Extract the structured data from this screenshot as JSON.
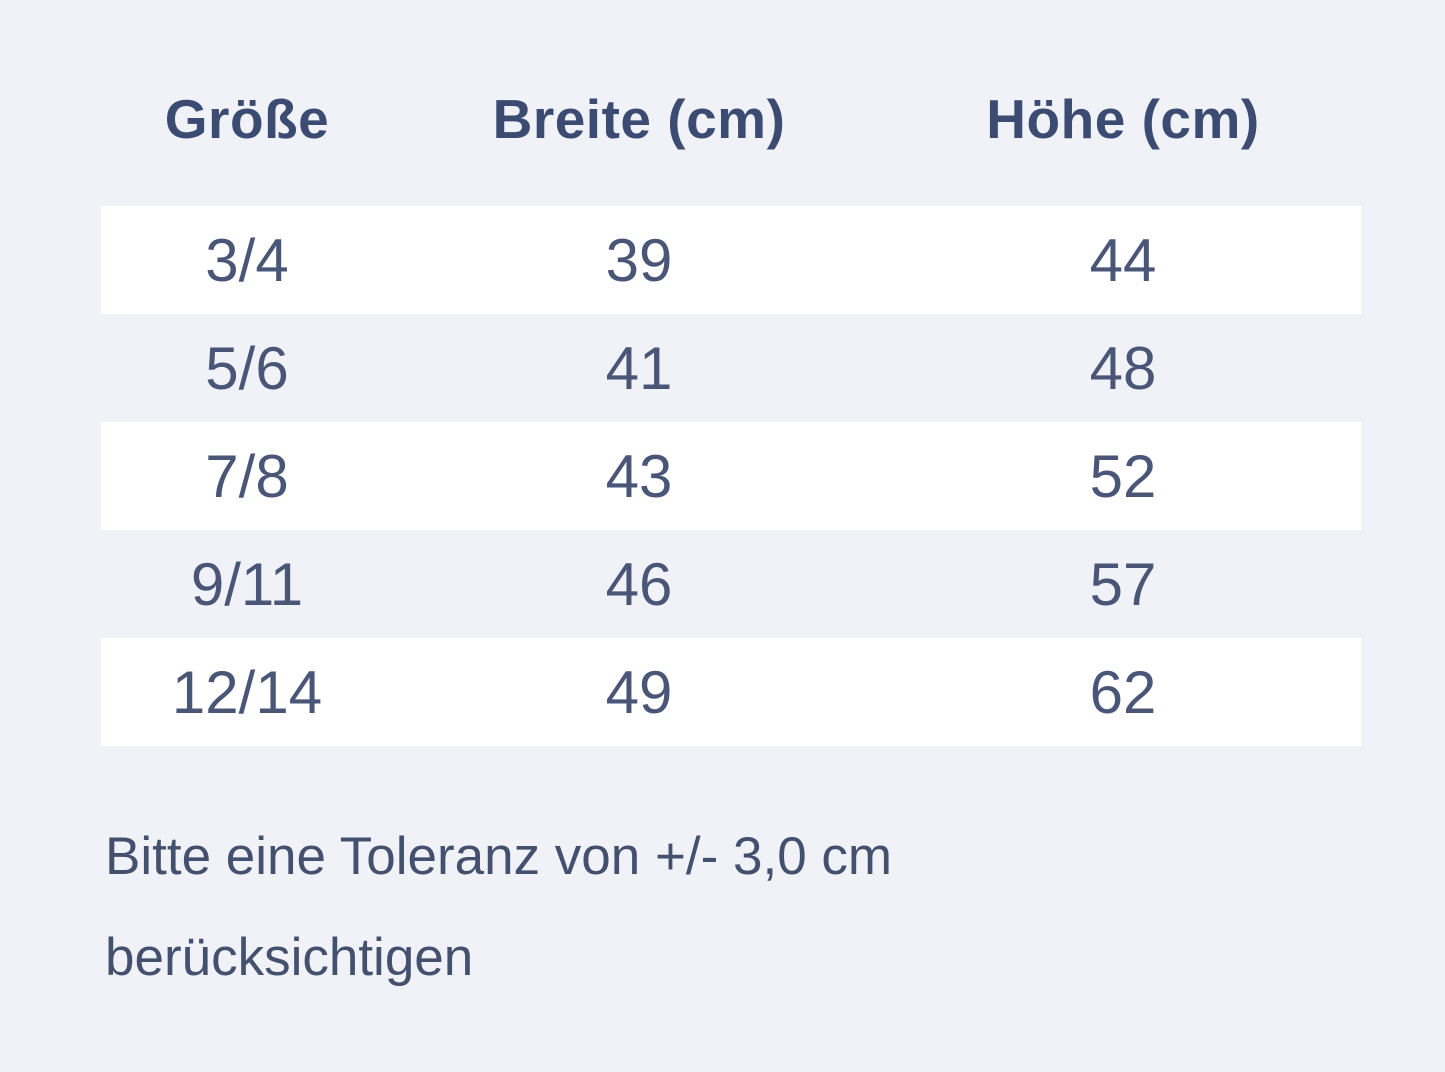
{
  "colors": {
    "page_background": "#f0f2f8",
    "row_stripe": "#ffffff",
    "header_text": "#3c4b72",
    "cell_text": "#4a5678",
    "note_text": "#43506e"
  },
  "size_chart": {
    "columns": [
      {
        "label": "Größe"
      },
      {
        "label": "Breite (cm)"
      },
      {
        "label": "Höhe (cm)"
      }
    ],
    "rows": [
      {
        "groesse": "3/4",
        "breite": "39",
        "hoehe": "44"
      },
      {
        "groesse": "5/6",
        "breite": "41",
        "hoehe": "48"
      },
      {
        "groesse": "7/8",
        "breite": "43",
        "hoehe": "52"
      },
      {
        "groesse": "9/11",
        "breite": "46",
        "hoehe": "57"
      },
      {
        "groesse": "12/14",
        "breite": "49",
        "hoehe": "62"
      }
    ],
    "note_lines": [
      "Bitte eine Toleranz von +/- 3,0 cm",
      "berücksichtigen"
    ]
  }
}
